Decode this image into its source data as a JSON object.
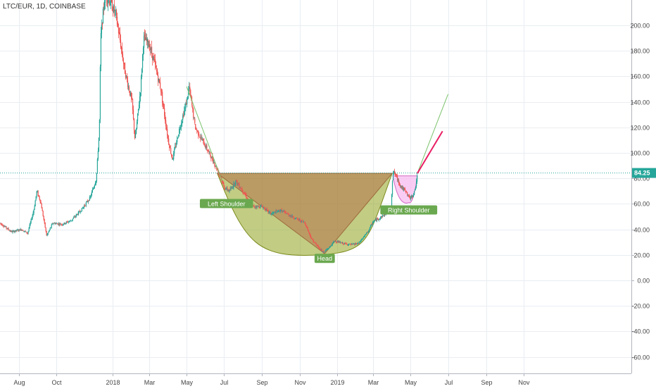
{
  "header": {
    "symbol": "LTC/EUR, 1D, COINBASE"
  },
  "colors": {
    "up": "#26a69a",
    "down": "#ef5350",
    "grid": "#e9edf2",
    "price_line": "#26a69a",
    "label_bg": "#6aa84f",
    "cup_fill": "#8fa31e",
    "head_tri_fill": "#b5734b",
    "handle_fill": "#f7b7f0",
    "projection_green": "#7ac36a",
    "projection_pink": "#e91e63"
  },
  "chart_data": {
    "type": "candlestick",
    "title": "",
    "xlabel": "",
    "ylabel": "",
    "ylim": [
      -70,
      220
    ],
    "y_ticks": [
      "200.00",
      "180.00",
      "160.00",
      "140.00",
      "120.00",
      "100.00",
      "80.00",
      "60.00",
      "40.00",
      "20.00",
      "0.00",
      "-20.00",
      "-40.00",
      "-60.00"
    ],
    "y_tick_values": [
      200,
      180,
      160,
      140,
      120,
      100,
      80,
      60,
      40,
      20,
      0,
      -20,
      -40,
      -60
    ],
    "x_ticks": [
      "Aug",
      "Oct",
      "2018",
      "Mar",
      "May",
      "Jul",
      "Sep",
      "Nov",
      "2019",
      "Mar",
      "May",
      "Jul",
      "Sep",
      "Nov"
    ],
    "x_tick_dates": [
      "2017-08-01",
      "2017-10-01",
      "2018-01-01",
      "2018-03-01",
      "2018-05-01",
      "2018-07-01",
      "2018-09-01",
      "2018-11-01",
      "2019-01-01",
      "2019-03-01",
      "2019-05-01",
      "2019-07-01",
      "2019-09-01",
      "2019-11-01"
    ],
    "x_range": [
      "2017-07-01",
      "2019-11-30"
    ],
    "last_price": 84.25,
    "last_price_label": "84.25",
    "price_path": [
      [
        "2017-07-01",
        45
      ],
      [
        "2017-07-20",
        38
      ],
      [
        "2017-08-05",
        40
      ],
      [
        "2017-08-15",
        37
      ],
      [
        "2017-08-25",
        55
      ],
      [
        "2017-08-30",
        70
      ],
      [
        "2017-09-05",
        62
      ],
      [
        "2017-09-15",
        35
      ],
      [
        "2017-09-25",
        45
      ],
      [
        "2017-10-10",
        44
      ],
      [
        "2017-10-25",
        47
      ],
      [
        "2017-11-10",
        55
      ],
      [
        "2017-11-25",
        65
      ],
      [
        "2017-12-05",
        80
      ],
      [
        "2017-12-10",
        120
      ],
      [
        "2017-12-12",
        190
      ],
      [
        "2017-12-19",
        225
      ],
      [
        "2017-12-25",
        220
      ],
      [
        "2018-01-05",
        210
      ],
      [
        "2018-01-12",
        190
      ],
      [
        "2018-01-20",
        165
      ],
      [
        "2018-02-01",
        140
      ],
      [
        "2018-02-06",
        110
      ],
      [
        "2018-02-15",
        150
      ],
      [
        "2018-02-20",
        190
      ],
      [
        "2018-03-01",
        185
      ],
      [
        "2018-03-10",
        170
      ],
      [
        "2018-03-20",
        150
      ],
      [
        "2018-04-01",
        110
      ],
      [
        "2018-04-08",
        95
      ],
      [
        "2018-04-20",
        120
      ],
      [
        "2018-05-01",
        140
      ],
      [
        "2018-05-05",
        152
      ],
      [
        "2018-05-15",
        120
      ],
      [
        "2018-06-01",
        105
      ],
      [
        "2018-06-12",
        95
      ],
      [
        "2018-06-25",
        82
      ],
      [
        "2018-07-01",
        73
      ],
      [
        "2018-07-10",
        70
      ],
      [
        "2018-07-20",
        78
      ],
      [
        "2018-08-01",
        70
      ],
      [
        "2018-08-15",
        58
      ],
      [
        "2018-09-01",
        58
      ],
      [
        "2018-09-15",
        52
      ],
      [
        "2018-10-01",
        55
      ],
      [
        "2018-10-20",
        50
      ],
      [
        "2018-11-10",
        45
      ],
      [
        "2018-11-20",
        33
      ],
      [
        "2018-11-28",
        28
      ],
      [
        "2018-12-10",
        22
      ],
      [
        "2018-12-20",
        26
      ],
      [
        "2018-12-28",
        31
      ],
      [
        "2019-01-10",
        29
      ],
      [
        "2019-01-25",
        28
      ],
      [
        "2019-02-05",
        29
      ],
      [
        "2019-02-20",
        38
      ],
      [
        "2019-03-01",
        46
      ],
      [
        "2019-03-15",
        50
      ],
      [
        "2019-03-30",
        56
      ],
      [
        "2019-04-02",
        85
      ],
      [
        "2019-04-05",
        84
      ],
      [
        "2019-04-15",
        74
      ],
      [
        "2019-04-25",
        68
      ],
      [
        "2019-05-01",
        64
      ],
      [
        "2019-05-08",
        70
      ],
      [
        "2019-05-12",
        84
      ]
    ],
    "patterns": {
      "labels": [
        {
          "text": "Left Shoulder",
          "date": "2018-07-05",
          "value": 60
        },
        {
          "text": "Head",
          "date": "2018-12-12",
          "value": 17
        },
        {
          "text": "Right Shoulder",
          "date": "2019-04-28",
          "value": 55
        }
      ],
      "cup": {
        "start": [
          "2018-06-20",
          84
        ],
        "bottom": [
          "2018-12-05",
          20
        ],
        "end": [
          "2019-04-01",
          84
        ]
      },
      "head_triangle": [
        [
          "2018-06-20",
          84
        ],
        [
          "2019-04-01",
          84
        ],
        [
          "2018-12-12",
          21
        ]
      ],
      "left_shoulder_line": [
        [
          "2018-05-01",
          152
        ],
        [
          "2018-06-28",
          78
        ]
      ],
      "handle": {
        "start": [
          "2019-04-02",
          82
        ],
        "bottom": [
          "2019-04-28",
          61
        ],
        "end": [
          "2019-05-12",
          82
        ]
      },
      "projection_green": [
        [
          "2019-05-12",
          84
        ],
        [
          "2019-07-01",
          146
        ]
      ],
      "projection_pink": [
        [
          "2019-05-12",
          84
        ],
        [
          "2019-06-22",
          117
        ]
      ]
    }
  }
}
